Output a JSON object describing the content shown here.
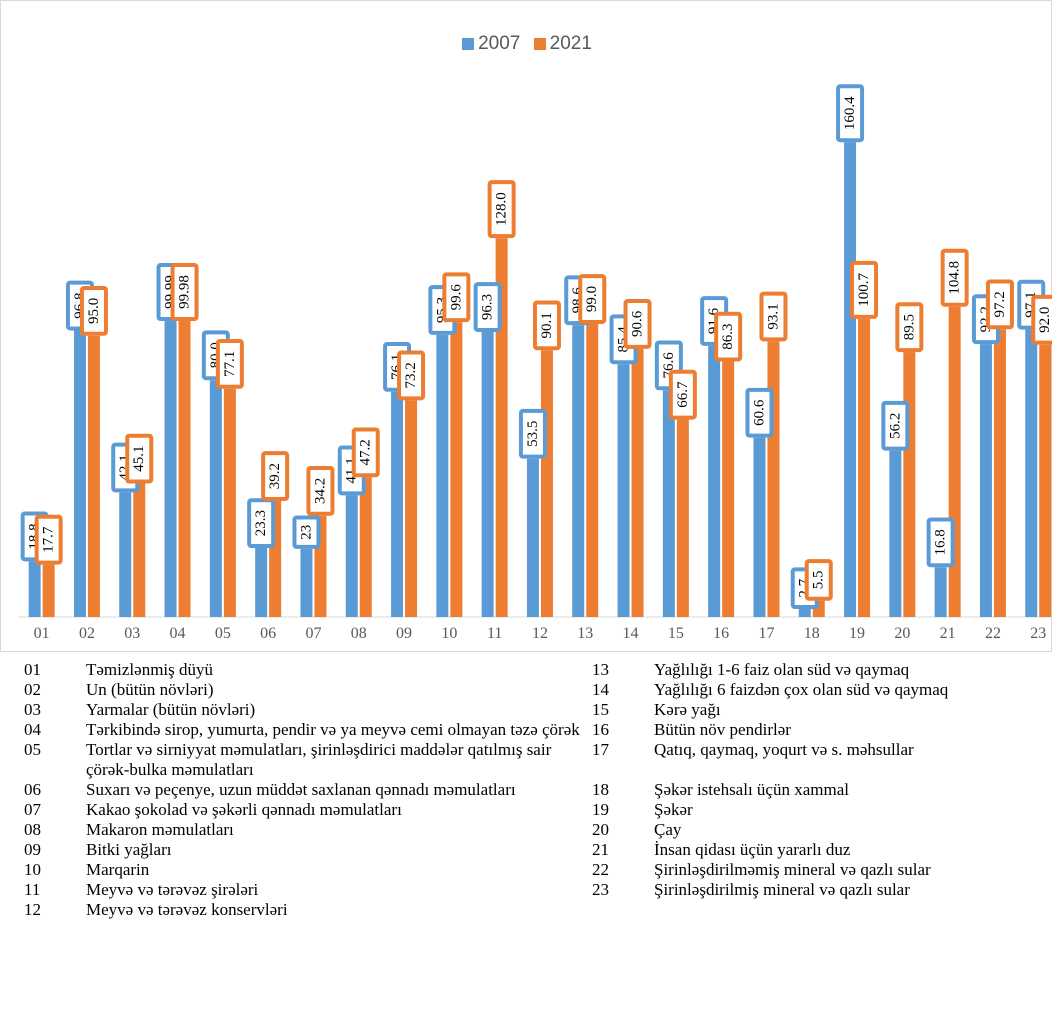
{
  "colors": {
    "s2007": "#5b9bd5",
    "s2021": "#ed7d31",
    "axis": "#d9d9d9",
    "tick": "#595959"
  },
  "legend": {
    "s2007": "2007",
    "s2021": "2021"
  },
  "chart_data": {
    "type": "bar",
    "title": "",
    "xlabel": "",
    "ylabel": "",
    "ylim": [
      0,
      170
    ],
    "grid": false,
    "legend_position": "top-center",
    "categories": [
      "01",
      "02",
      "03",
      "04",
      "05",
      "06",
      "07",
      "08",
      "09",
      "10",
      "11",
      "12",
      "13",
      "14",
      "15",
      "16",
      "17",
      "18",
      "19",
      "20",
      "21",
      "22",
      "23"
    ],
    "series": [
      {
        "name": "2007",
        "values": [
          18.8,
          96.8,
          42.1,
          99.99,
          80.0,
          23.3,
          23,
          41.1,
          76.1,
          95.3,
          96.3,
          53.5,
          98.6,
          85.4,
          76.6,
          91.6,
          60.6,
          2.7,
          160.4,
          56.2,
          16.8,
          92.2,
          97.1
        ],
        "labels": [
          "18.8",
          "96.8",
          "42.1",
          "99.99",
          "80.0",
          "23.3",
          "23",
          "41.1",
          "76.1",
          "95.3",
          "96.3",
          "53.5",
          "98.6",
          "85.4",
          "76.6",
          "91.6",
          "60.6",
          "2.7",
          "160.4",
          "56.2",
          "16.8",
          "92.2",
          "97.1"
        ]
      },
      {
        "name": "2021",
        "values": [
          17.7,
          95.0,
          45.1,
          99.98,
          77.1,
          39.2,
          34.2,
          47.2,
          73.2,
          99.6,
          128.0,
          90.1,
          99.0,
          90.6,
          66.7,
          86.3,
          93.1,
          5.5,
          100.7,
          89.5,
          104.8,
          97.2,
          92.0
        ],
        "labels": [
          "17.7",
          "95.0",
          "45.1",
          "99.98",
          "77.1",
          "39.2",
          "34.2",
          "47.2",
          "73.2",
          "99.6",
          "128.0",
          "90.1",
          "99.0",
          "90.6",
          "66.7",
          "86.3",
          "93.1",
          "5.5",
          "100.7",
          "89.5",
          "104.8",
          "97.2",
          "92.0"
        ]
      }
    ]
  },
  "legend_items_left": [
    {
      "code": "01",
      "desc": "Təmizlənmiş düyü"
    },
    {
      "code": "02",
      "desc": "Un (bütün növləri)"
    },
    {
      "code": "03",
      "desc": "Yarmalar (bütün növləri)"
    },
    {
      "code": "04",
      "desc": "Tərkibində sirop, yumurta, pendir və ya meyvə cemi olmayan təzə çörək"
    },
    {
      "code": "05",
      "desc": "Tortlar və sirniyyat məmulatları, şirinləşdirici maddələr qatılmış sair çörək-bulka məmulatları"
    },
    {
      "code": "06",
      "desc": "Suxarı və peçenye, uzun müddət saxlanan qənnadı məmulatları"
    },
    {
      "code": "07",
      "desc": "Kakao şokolad və şəkərli qənnadı məmulatları"
    },
    {
      "code": "08",
      "desc": "Makaron məmulatları"
    },
    {
      "code": "09",
      "desc": "Bitki yağları"
    },
    {
      "code": "10",
      "desc": "Marqarin"
    },
    {
      "code": "11",
      "desc": "Meyvə və tərəvəz şirələri"
    },
    {
      "code": "12",
      "desc": "Meyvə və tərəvəz konservləri"
    }
  ],
  "legend_items_right": [
    {
      "code": "13",
      "desc": "Yağlılığı 1-6 faiz olan süd və qaymaq"
    },
    {
      "code": "14",
      "desc": "Yağlılığı 6 faizdən çox olan süd və qaymaq"
    },
    {
      "code": "15",
      "desc": "Kərə yağı"
    },
    {
      "code": "16",
      "desc": "Bütün növ pendirlər"
    },
    {
      "code": "17",
      "desc": "Qatıq, qaymaq, yoqurt və s. məhsullar"
    },
    {
      "code": "18",
      "desc": "Şəkər istehsalı üçün xammal"
    },
    {
      "code": "19",
      "desc": "Şəkər"
    },
    {
      "code": "20",
      "desc": "Çay"
    },
    {
      "code": "21",
      "desc": "İnsan qidası üçün yararlı duz"
    },
    {
      "code": "22",
      "desc": "Şirinləşdirilməmiş mineral və qazlı sular"
    },
    {
      "code": "23",
      "desc": "Şirinləşdirilmiş mineral və qazlı sular"
    }
  ]
}
